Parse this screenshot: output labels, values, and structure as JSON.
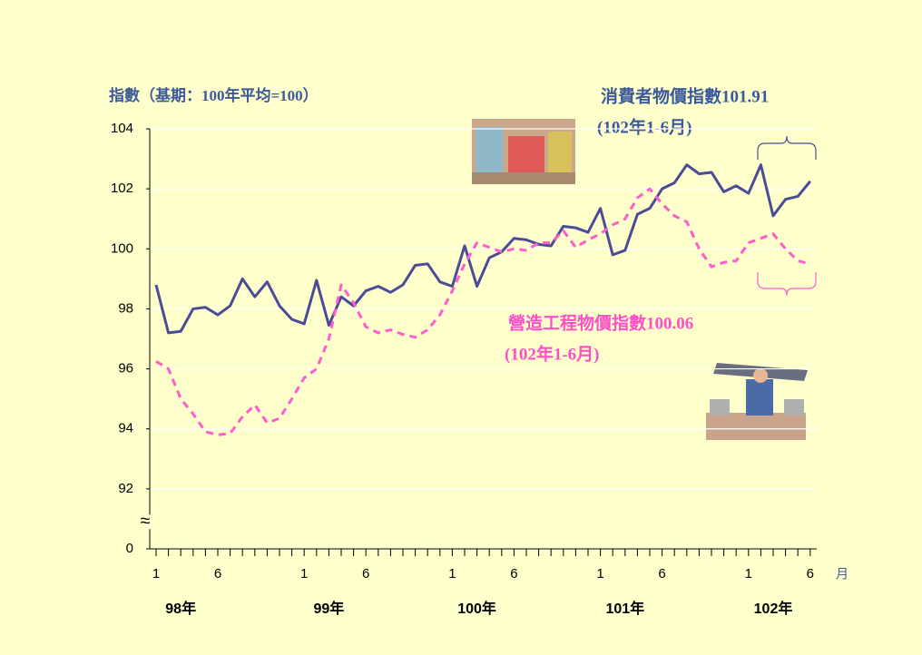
{
  "chart_data": {
    "type": "line",
    "y_axis_title": "指數（基期：100年平均=100）",
    "categories": [
      "1",
      null,
      null,
      null,
      null,
      "6",
      null,
      null,
      null,
      null,
      null,
      null,
      "1",
      null,
      null,
      null,
      null,
      "6",
      null,
      null,
      null,
      null,
      null,
      null,
      "1",
      null,
      null,
      null,
      null,
      "6",
      null,
      null,
      null,
      null,
      null,
      null,
      "1",
      null,
      null,
      null,
      null,
      "6",
      null,
      null,
      null,
      null,
      null,
      null,
      "1",
      null,
      null,
      null,
      null,
      "6"
    ],
    "x_groups": [
      "98年",
      "99年",
      "100年",
      "101年",
      "102年"
    ],
    "x_unit": "月",
    "ylim": [
      0,
      104
    ],
    "yticks": [
      0,
      92,
      94,
      96,
      98,
      100,
      102,
      104
    ],
    "axis_break": true,
    "break_symbol": "≈",
    "grid": true,
    "series": [
      {
        "color": "#4b4b98",
        "dash": false,
        "values": [
          98.8,
          97.2,
          97.25,
          98.0,
          98.05,
          97.8,
          98.1,
          99.0,
          98.4,
          98.9,
          98.1,
          97.65,
          97.5,
          98.95,
          97.45,
          98.4,
          98.1,
          98.6,
          98.75,
          98.55,
          98.8,
          99.45,
          99.5,
          98.9,
          98.75,
          100.1,
          98.75,
          99.7,
          99.9,
          100.35,
          100.3,
          100.15,
          100.1,
          100.75,
          100.7,
          100.55,
          101.35,
          99.8,
          99.95,
          101.15,
          101.35,
          102.0,
          102.2,
          102.8,
          102.5,
          102.55,
          101.9,
          102.1,
          101.85,
          102.8,
          101.1,
          101.65,
          101.75,
          102.25
        ]
      },
      {
        "color": "#ff5ccc",
        "dash": true,
        "values": [
          96.25,
          96.0,
          95.0,
          94.5,
          93.9,
          93.8,
          93.85,
          94.4,
          94.8,
          94.2,
          94.35,
          95.0,
          95.7,
          96.0,
          97.0,
          98.8,
          98.2,
          97.4,
          97.2,
          97.3,
          97.15,
          97.05,
          97.3,
          97.8,
          98.6,
          99.5,
          100.2,
          100.05,
          99.9,
          100.0,
          99.95,
          100.2,
          100.2,
          100.6,
          100.05,
          100.3,
          100.5,
          100.8,
          101.0,
          101.7,
          102.0,
          101.5,
          101.1,
          100.9,
          100.0,
          99.4,
          99.55,
          99.6,
          100.2,
          100.35,
          100.5,
          100.0,
          99.6,
          99.5
        ]
      }
    ],
    "annotations": [
      {
        "text": "消費者物價指數101.91",
        "sub": "(102年1-6月)",
        "color": "#3c5a9a"
      },
      {
        "text": "營造工程物價指數100.06",
        "sub": "(102年1-6月)",
        "color": "#ff4fc8"
      }
    ]
  }
}
